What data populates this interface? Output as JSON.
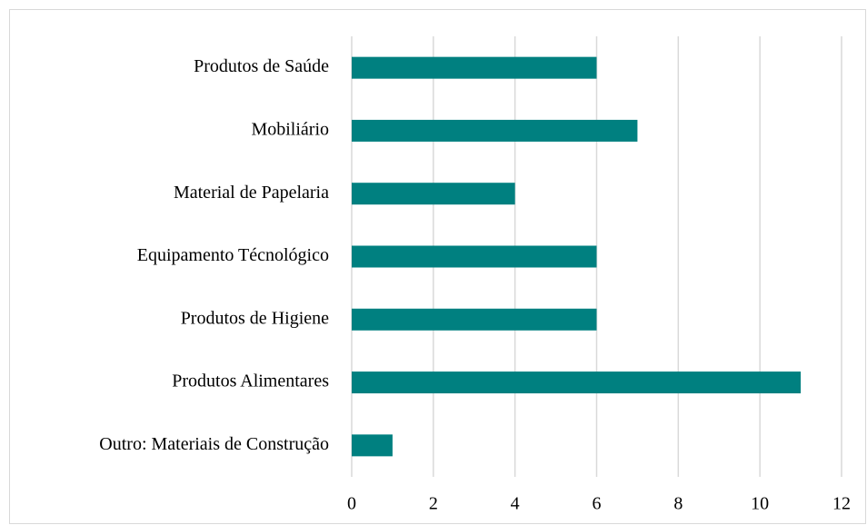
{
  "chart_data": {
    "type": "barh",
    "categories": [
      "Produtos de Saúde",
      "Mobiliário",
      "Material de Papelaria",
      "Equipamento Técnológico",
      "Produtos de Higiene",
      "Produtos Alimentares",
      "Outro: Materiais de Construção"
    ],
    "values": [
      6,
      7,
      4,
      6,
      6,
      11,
      1
    ],
    "color": "#008080",
    "xlim": [
      0,
      12
    ],
    "xticks": [
      0,
      2,
      4,
      6,
      8,
      10,
      12
    ],
    "grid": true
  }
}
